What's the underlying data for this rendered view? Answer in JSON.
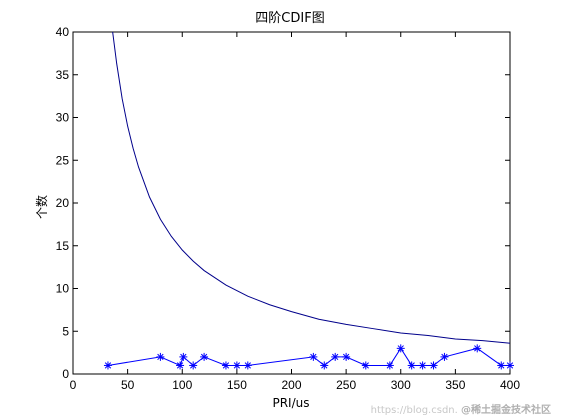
{
  "chart_data": {
    "type": "line",
    "title": "四阶CDIF图",
    "xlabel": "PRI/us",
    "ylabel": "个数",
    "xlim": [
      0,
      400
    ],
    "ylim": [
      0,
      40
    ],
    "xticks": [
      0,
      50,
      100,
      150,
      200,
      250,
      300,
      350,
      400
    ],
    "yticks": [
      0,
      5,
      10,
      15,
      20,
      25,
      30,
      35,
      40
    ],
    "grid": false,
    "series": [
      {
        "marker": "star",
        "color": "#0000ff",
        "points": [
          [
            32,
            1
          ],
          [
            80,
            2
          ],
          [
            98,
            1
          ],
          [
            101,
            2
          ],
          [
            110,
            1
          ],
          [
            120,
            2
          ],
          [
            140,
            1
          ],
          [
            150,
            1
          ],
          [
            160,
            1
          ],
          [
            220,
            2
          ],
          [
            230,
            1
          ],
          [
            240,
            2
          ],
          [
            250,
            2
          ],
          [
            268,
            1
          ],
          [
            290,
            1
          ],
          [
            300,
            3
          ],
          [
            310,
            1
          ],
          [
            320,
            1
          ],
          [
            330,
            1
          ],
          [
            340,
            2
          ],
          [
            370,
            3
          ],
          [
            392,
            1
          ],
          [
            400,
            1
          ]
        ]
      },
      {
        "marker": "none",
        "color": "#00008b",
        "formula": "y = 1450 / x",
        "points": [
          [
            36,
            40.3
          ],
          [
            40,
            36.3
          ],
          [
            45,
            32.2
          ],
          [
            50,
            29.0
          ],
          [
            55,
            26.4
          ],
          [
            60,
            24.2
          ],
          [
            70,
            20.7
          ],
          [
            80,
            18.1
          ],
          [
            90,
            16.1
          ],
          [
            100,
            14.5
          ],
          [
            110,
            13.2
          ],
          [
            120,
            12.1
          ],
          [
            140,
            10.4
          ],
          [
            160,
            9.1
          ],
          [
            180,
            8.1
          ],
          [
            200,
            7.3
          ],
          [
            225,
            6.4
          ],
          [
            250,
            5.8
          ],
          [
            275,
            5.3
          ],
          [
            300,
            4.8
          ],
          [
            325,
            4.5
          ],
          [
            350,
            4.1
          ],
          [
            375,
            3.9
          ],
          [
            400,
            3.6
          ]
        ]
      }
    ]
  },
  "watermark": {
    "url": "https://blog.csdn.",
    "brand": "@稀土掘金技术社区"
  }
}
